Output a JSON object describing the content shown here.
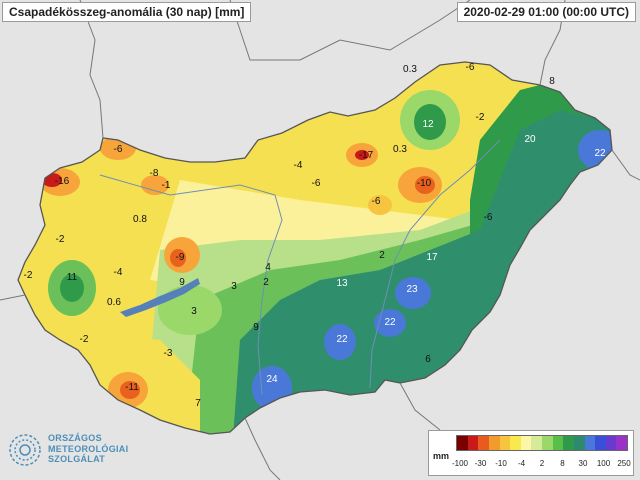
{
  "title": "Csapadékösszeg-anomália (30 nap) [mm]",
  "timestamp": "2020-02-29 01:00 (00:00 UTC)",
  "legend": {
    "unit": "mm",
    "colors": [
      "#7a0000",
      "#c81a1a",
      "#e85a1e",
      "#f39a2c",
      "#f7c440",
      "#f8e94c",
      "#fbf6a8",
      "#d6ea9a",
      "#9ad86a",
      "#58c04a",
      "#2e9a4a",
      "#2e8a6e",
      "#4a78d8",
      "#3a4fd8",
      "#6a3ad0",
      "#9a32c8"
    ],
    "ticks": [
      "-100",
      "-30",
      "-10",
      "-4",
      "2",
      "8",
      "30",
      "100",
      "250"
    ]
  },
  "labels": [
    {
      "text": "0.3"
    },
    {
      "text": "-6"
    },
    {
      "text": "8"
    },
    {
      "text": "12"
    },
    {
      "text": "-2"
    },
    {
      "text": "20"
    },
    {
      "text": "22"
    },
    {
      "text": "-17"
    },
    {
      "text": "0.3"
    },
    {
      "text": "-6"
    },
    {
      "text": "-4"
    },
    {
      "text": "-6"
    },
    {
      "text": "-10"
    },
    {
      "text": "-6"
    },
    {
      "text": "-16"
    },
    {
      "text": "-6"
    },
    {
      "text": "-8"
    },
    {
      "text": "-1"
    },
    {
      "text": "0.8"
    },
    {
      "text": "-2"
    },
    {
      "text": "-9"
    },
    {
      "text": "2"
    },
    {
      "text": "17"
    },
    {
      "text": "-2"
    },
    {
      "text": "11"
    },
    {
      "text": "-4"
    },
    {
      "text": "9"
    },
    {
      "text": "3"
    },
    {
      "text": "4"
    },
    {
      "text": "2"
    },
    {
      "text": "13"
    },
    {
      "text": "23"
    },
    {
      "text": "0.6"
    },
    {
      "text": "3"
    },
    {
      "text": "22"
    },
    {
      "text": "-2"
    },
    {
      "text": "9"
    },
    {
      "text": "22"
    },
    {
      "text": "-3"
    },
    {
      "text": "6"
    },
    {
      "text": "-11"
    },
    {
      "text": "24"
    },
    {
      "text": "7"
    }
  ],
  "logo": {
    "line1": "ORSZÁGOS",
    "line2": "METEOROLÓGIAI",
    "line3": "SZOLGÁLAT"
  }
}
